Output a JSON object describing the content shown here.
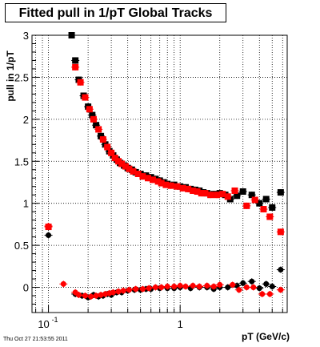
{
  "title": "Fitted pull in 1/pT  Global Tracks",
  "timestamp": "Thu Oct 27 21:53:55 2011",
  "chart_data": {
    "type": "scatter",
    "title": "Fitted pull in 1/pT  Global Tracks",
    "xlabel": "pT (GeV/c)",
    "ylabel": "pull in 1/pT",
    "xscale": "log",
    "xlim": [
      0.075,
      6.5
    ],
    "ylim": [
      -0.3,
      3.0
    ],
    "grid": true,
    "xticklabels": [
      {
        "value": 0.1,
        "label": "10",
        "exp": "-1"
      },
      {
        "value": 1,
        "label": "1"
      }
    ],
    "yticks": [
      0,
      0.5,
      1,
      1.5,
      2,
      2.5,
      3
    ],
    "yticklabels": [
      "0",
      "0.5",
      "1",
      "1.5",
      "2",
      "2.5",
      "3"
    ],
    "series": [
      {
        "color": "#000000",
        "marker": "square",
        "x": [
          0.15,
          0.16,
          0.17,
          0.185,
          0.2,
          0.215,
          0.23,
          0.25,
          0.27,
          0.29,
          0.31,
          0.33,
          0.35,
          0.375,
          0.4,
          0.43,
          0.46,
          0.5,
          0.55,
          0.6,
          0.65,
          0.7,
          0.75,
          0.8,
          0.9,
          1.0,
          1.1,
          1.2,
          1.3,
          1.4,
          1.5,
          1.6,
          1.8,
          2.0,
          2.2,
          2.4,
          2.7,
          3.0,
          3.5,
          4.0,
          4.5,
          5.0,
          5.8
        ],
        "y": [
          3.0,
          2.7,
          2.47,
          2.28,
          2.15,
          2.05,
          1.93,
          1.8,
          1.7,
          1.62,
          1.57,
          1.52,
          1.48,
          1.45,
          1.42,
          1.4,
          1.37,
          1.35,
          1.33,
          1.31,
          1.29,
          1.27,
          1.25,
          1.23,
          1.22,
          1.2,
          1.19,
          1.17,
          1.16,
          1.15,
          1.13,
          1.12,
          1.11,
          1.12,
          1.1,
          1.05,
          1.09,
          1.14,
          1.1,
          1.0,
          1.05,
          0.95,
          1.13
        ]
      },
      {
        "color": "#ff0000",
        "marker": "square",
        "x": [
          0.1,
          0.16,
          0.175,
          0.19,
          0.205,
          0.22,
          0.24,
          0.26,
          0.28,
          0.3,
          0.32,
          0.34,
          0.36,
          0.385,
          0.41,
          0.44,
          0.48,
          0.52,
          0.57,
          0.62,
          0.68,
          0.72,
          0.78,
          0.85,
          0.95,
          1.05,
          1.15,
          1.25,
          1.35,
          1.45,
          1.55,
          1.7,
          1.9,
          2.1,
          2.3,
          2.6,
          3.2,
          3.7,
          4.3,
          4.8,
          5.8
        ],
        "y": [
          0.72,
          2.62,
          2.44,
          2.26,
          2.12,
          2.0,
          1.88,
          1.76,
          1.67,
          1.6,
          1.54,
          1.5,
          1.47,
          1.44,
          1.41,
          1.38,
          1.35,
          1.32,
          1.3,
          1.28,
          1.26,
          1.24,
          1.22,
          1.21,
          1.2,
          1.18,
          1.17,
          1.15,
          1.14,
          1.12,
          1.12,
          1.1,
          1.1,
          1.11,
          1.08,
          1.15,
          0.97,
          1.04,
          0.93,
          0.84,
          0.66
        ]
      },
      {
        "color": "#000000",
        "marker": "circle",
        "x": [
          0.1,
          0.16,
          0.18,
          0.2,
          0.22,
          0.24,
          0.26,
          0.28,
          0.3,
          0.33,
          0.36,
          0.4,
          0.45,
          0.5,
          0.55,
          0.6,
          0.7,
          0.8,
          0.9,
          1.0,
          1.2,
          1.4,
          1.6,
          1.8,
          2.0,
          2.3,
          2.7,
          3.0,
          3.5,
          4.0,
          4.5,
          5.0,
          5.8
        ],
        "y": [
          0.62,
          -0.08,
          -0.1,
          -0.12,
          -0.09,
          -0.11,
          -0.1,
          -0.08,
          -0.09,
          -0.06,
          -0.06,
          -0.04,
          -0.03,
          -0.03,
          -0.02,
          -0.02,
          -0.01,
          -0.01,
          -0.01,
          0.0,
          -0.01,
          0.0,
          0.0,
          -0.02,
          0.0,
          0.0,
          0.02,
          0.05,
          0.07,
          -0.01,
          0.04,
          0.01,
          0.21
        ]
      },
      {
        "color": "#ff0000",
        "marker": "circle",
        "x": [
          0.1,
          0.13,
          0.16,
          0.17,
          0.19,
          0.21,
          0.23,
          0.25,
          0.27,
          0.29,
          0.31,
          0.34,
          0.37,
          0.41,
          0.46,
          0.52,
          0.58,
          0.65,
          0.72,
          0.8,
          0.9,
          1.0,
          1.1,
          1.25,
          1.4,
          1.6,
          1.8,
          2.0,
          2.5,
          2.8,
          3.2,
          3.6,
          4.2,
          4.8,
          5.8
        ],
        "y": [
          0.73,
          0.04,
          -0.06,
          -0.09,
          -0.1,
          -0.11,
          -0.1,
          -0.09,
          -0.08,
          -0.07,
          -0.06,
          -0.05,
          -0.04,
          -0.03,
          -0.02,
          -0.02,
          -0.01,
          0.0,
          0.0,
          0.01,
          0.01,
          0.02,
          0.01,
          0.02,
          0.01,
          0.02,
          0.01,
          0.03,
          0.03,
          -0.03,
          0.0,
          0.0,
          -0.08,
          -0.08,
          -0.03
        ]
      }
    ]
  }
}
